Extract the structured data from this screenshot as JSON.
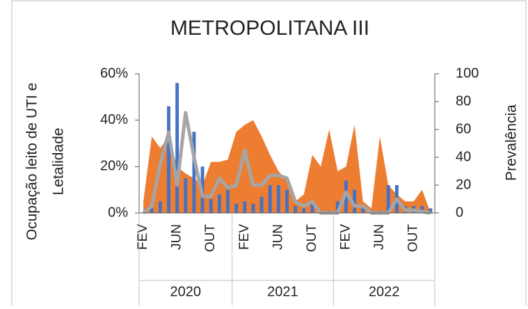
{
  "chart_data": {
    "type": "combo",
    "title": "METROPOLITANA III",
    "y_axis_label": [
      "Ocupação leito de UTI e",
      "Letalidade"
    ],
    "y2_axis_label": "Prevalência",
    "categories": [
      "FEV",
      null,
      null,
      null,
      "JUN",
      null,
      null,
      null,
      "OUT",
      null,
      null,
      null,
      "FEV",
      null,
      null,
      null,
      "JUN",
      null,
      null,
      null,
      "OUT",
      null,
      null,
      null,
      "FEV",
      null,
      null,
      null,
      "JUN",
      null,
      null,
      null,
      "OUT",
      null,
      null
    ],
    "groups": [
      {
        "label": "2020",
        "months": 11
      },
      {
        "label": "2021",
        "months": 12
      },
      {
        "label": "2022",
        "months": 12
      }
    ],
    "series": [
      {
        "type": "area",
        "color": "#ed7d31",
        "values": [
          5,
          33,
          28,
          33,
          20,
          17,
          15,
          12,
          22,
          22,
          23,
          35,
          38,
          40,
          33,
          25,
          18,
          14,
          5,
          8,
          25,
          20,
          36,
          18,
          20,
          38,
          5,
          2,
          33,
          12,
          8,
          5,
          5,
          10,
          0
        ]
      },
      {
        "type": "bar",
        "color": "#4472c4",
        "values": [
          0,
          2,
          5,
          46,
          56,
          15,
          35,
          20,
          6,
          8,
          10,
          4,
          5,
          4,
          7,
          12,
          12,
          10,
          3,
          2,
          4,
          1,
          1,
          5,
          14,
          10,
          2,
          1,
          1,
          12,
          12,
          3,
          3,
          3,
          2
        ]
      },
      {
        "type": "line",
        "axis": "y2",
        "color": "#a5a5a5",
        "values": [
          0,
          5,
          35,
          58,
          20,
          72,
          40,
          12,
          12,
          25,
          18,
          20,
          45,
          20,
          20,
          27,
          27,
          25,
          8,
          5,
          8,
          0,
          0,
          0,
          15,
          5,
          5,
          0,
          0,
          0,
          10,
          2,
          2,
          1,
          0
        ]
      }
    ],
    "ylim": [
      0,
      60
    ],
    "yticks": [
      {
        "value": 0,
        "label": "0%"
      },
      {
        "value": 20,
        "label": "20%"
      },
      {
        "value": 40,
        "label": "40%"
      },
      {
        "value": 60,
        "label": "60%"
      }
    ],
    "y2lim": [
      0,
      100
    ],
    "y2ticks": [
      0,
      20,
      40,
      60,
      80,
      100
    ]
  }
}
